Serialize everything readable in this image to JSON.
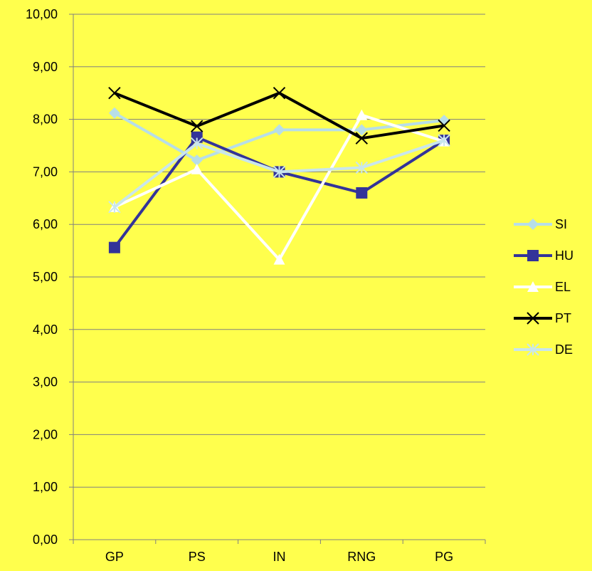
{
  "chart_data": {
    "type": "line",
    "categories": [
      "GP",
      "PS",
      "IN",
      "RNG",
      "PG"
    ],
    "ylim": [
      0,
      10
    ],
    "yticks": [
      "0,00",
      "1,00",
      "2,00",
      "3,00",
      "4,00",
      "5,00",
      "6,00",
      "7,00",
      "8,00",
      "9,00",
      "10,00"
    ],
    "grid": "horizontal",
    "legend_placement": "right",
    "background_color": "#FFFF4D",
    "series": [
      {
        "name": "SI",
        "values": [
          8.12,
          7.22,
          7.8,
          7.8,
          7.98
        ],
        "color": "#B7DEE8",
        "marker": "diamond"
      },
      {
        "name": "HU",
        "values": [
          5.56,
          7.66,
          7.0,
          6.6,
          7.6
        ],
        "color": "#333399",
        "marker": "square"
      },
      {
        "name": "EL",
        "values": [
          6.33,
          7.05,
          5.33,
          8.08,
          7.58
        ],
        "color": "#FFFFFF",
        "marker": "triangle"
      },
      {
        "name": "PT",
        "values": [
          8.5,
          7.87,
          8.5,
          7.64,
          7.88
        ],
        "color": "#000000",
        "marker": "x"
      },
      {
        "name": "DE",
        "values": [
          6.33,
          7.54,
          7.0,
          7.08,
          7.6
        ],
        "color": "#C9E6EC",
        "marker": "star"
      }
    ]
  }
}
